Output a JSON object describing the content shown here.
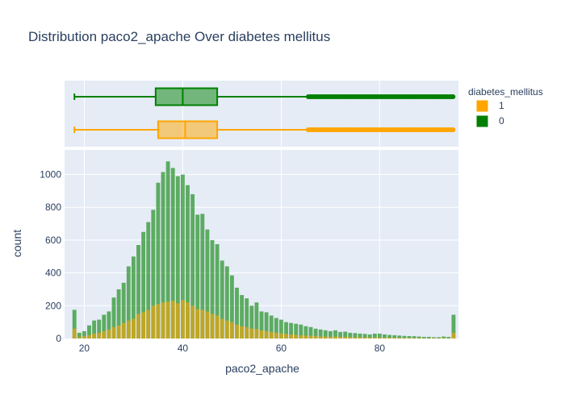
{
  "chart_data": {
    "type": "histogram",
    "title": "Distribution paco2_apache Over diabetes mellitus",
    "xlabel": "paco2_apache",
    "ylabel": "count",
    "xlim": [
      16,
      96
    ],
    "ylim": [
      0,
      1150
    ],
    "x_ticks": [
      20,
      40,
      60,
      80
    ],
    "y_ticks": [
      0,
      200,
      400,
      600,
      800,
      1000
    ],
    "grid": true,
    "barmode": "overlay",
    "legend": {
      "title": "diabetes_mellitus",
      "placement": "right",
      "entries": [
        {
          "label": "1",
          "color": "#FFA500"
        },
        {
          "label": "0",
          "color": "#008000"
        }
      ]
    },
    "boxplots": [
      {
        "name": "0",
        "color": "#008000",
        "min": 18,
        "q1": 34.5,
        "median": 40,
        "q3": 47,
        "upper_fence": 65.5,
        "outliers_range": [
          65.5,
          95
        ]
      },
      {
        "name": "1",
        "color": "#FFA500",
        "min": 18,
        "q1": 35,
        "median": 40.5,
        "q3": 47,
        "upper_fence": 65.5,
        "outliers_range": [
          65.5,
          95
        ]
      }
    ],
    "series": [
      {
        "name": "0",
        "color": "#008000",
        "x": [
          18,
          19,
          20,
          21,
          22,
          23,
          24,
          25,
          26,
          27,
          28,
          29,
          30,
          31,
          32,
          33,
          34,
          35,
          36,
          37,
          38,
          39,
          40,
          41,
          42,
          43,
          44,
          45,
          46,
          47,
          48,
          49,
          50,
          51,
          52,
          53,
          54,
          55,
          56,
          57,
          58,
          59,
          60,
          61,
          62,
          63,
          64,
          65,
          66,
          67,
          68,
          69,
          70,
          71,
          72,
          73,
          74,
          75,
          76,
          77,
          78,
          79,
          80,
          81,
          82,
          83,
          84,
          85,
          86,
          87,
          88,
          89,
          90,
          91,
          92,
          93,
          94,
          95
        ],
        "values": [
          175,
          35,
          45,
          80,
          110,
          115,
          145,
          165,
          250,
          300,
          340,
          440,
          500,
          570,
          650,
          710,
          785,
          950,
          1015,
          1080,
          1040,
          990,
          1000,
          935,
          880,
          755,
          760,
          665,
          600,
          575,
          475,
          440,
          385,
          310,
          265,
          245,
          200,
          220,
          165,
          160,
          140,
          125,
          115,
          100,
          95,
          90,
          85,
          75,
          70,
          60,
          55,
          50,
          45,
          50,
          40,
          42,
          35,
          33,
          30,
          28,
          25,
          30,
          30,
          25,
          22,
          20,
          18,
          16,
          15,
          14,
          12,
          10,
          10,
          8,
          8,
          12,
          10,
          145
        ]
      },
      {
        "name": "1",
        "color": "#FFA500",
        "x": [
          18,
          19,
          20,
          21,
          22,
          23,
          24,
          25,
          26,
          27,
          28,
          29,
          30,
          31,
          32,
          33,
          34,
          35,
          36,
          37,
          38,
          39,
          40,
          41,
          42,
          43,
          44,
          45,
          46,
          47,
          48,
          49,
          50,
          51,
          52,
          53,
          54,
          55,
          56,
          57,
          58,
          59,
          60,
          61,
          62,
          63,
          64,
          65,
          66,
          67,
          68,
          69,
          70,
          71,
          72,
          73,
          74,
          75,
          76,
          77,
          78,
          79,
          80,
          81,
          82,
          83,
          84,
          85,
          86,
          87,
          88,
          89,
          90,
          91,
          92,
          93,
          94,
          95
        ],
        "values": [
          60,
          8,
          15,
          20,
          30,
          35,
          45,
          55,
          70,
          80,
          95,
          110,
          120,
          150,
          160,
          175,
          200,
          210,
          220,
          225,
          230,
          215,
          235,
          220,
          200,
          180,
          175,
          165,
          150,
          140,
          120,
          110,
          100,
          85,
          75,
          70,
          60,
          58,
          50,
          45,
          40,
          36,
          32,
          28,
          25,
          22,
          20,
          18,
          17,
          15,
          13,
          12,
          11,
          12,
          10,
          10,
          9,
          8,
          8,
          7,
          6,
          7,
          6,
          6,
          5,
          5,
          4,
          4,
          4,
          3,
          3,
          3,
          2,
          3,
          2,
          3,
          3,
          35
        ]
      }
    ]
  }
}
